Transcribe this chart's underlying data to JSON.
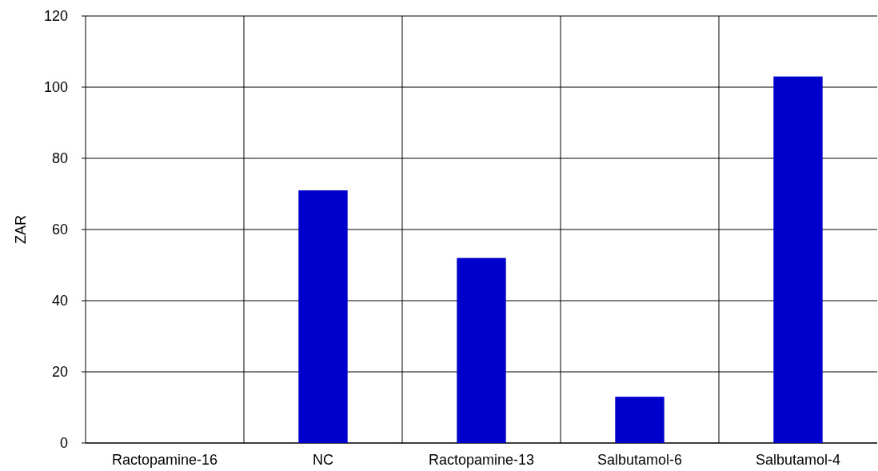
{
  "chart_data": {
    "type": "bar",
    "ylabel": "ZAR",
    "categories": [
      "Ractopamine-16",
      "NC",
      "Ractopamine-13",
      "Salbutamol-6",
      "Salbutamol-4"
    ],
    "values": [
      0,
      71,
      52,
      13,
      103
    ],
    "color": "#0000cc",
    "ylim": [
      0,
      120
    ],
    "yticks": [
      0,
      20,
      40,
      60,
      80,
      100,
      120
    ],
    "grid": true
  }
}
